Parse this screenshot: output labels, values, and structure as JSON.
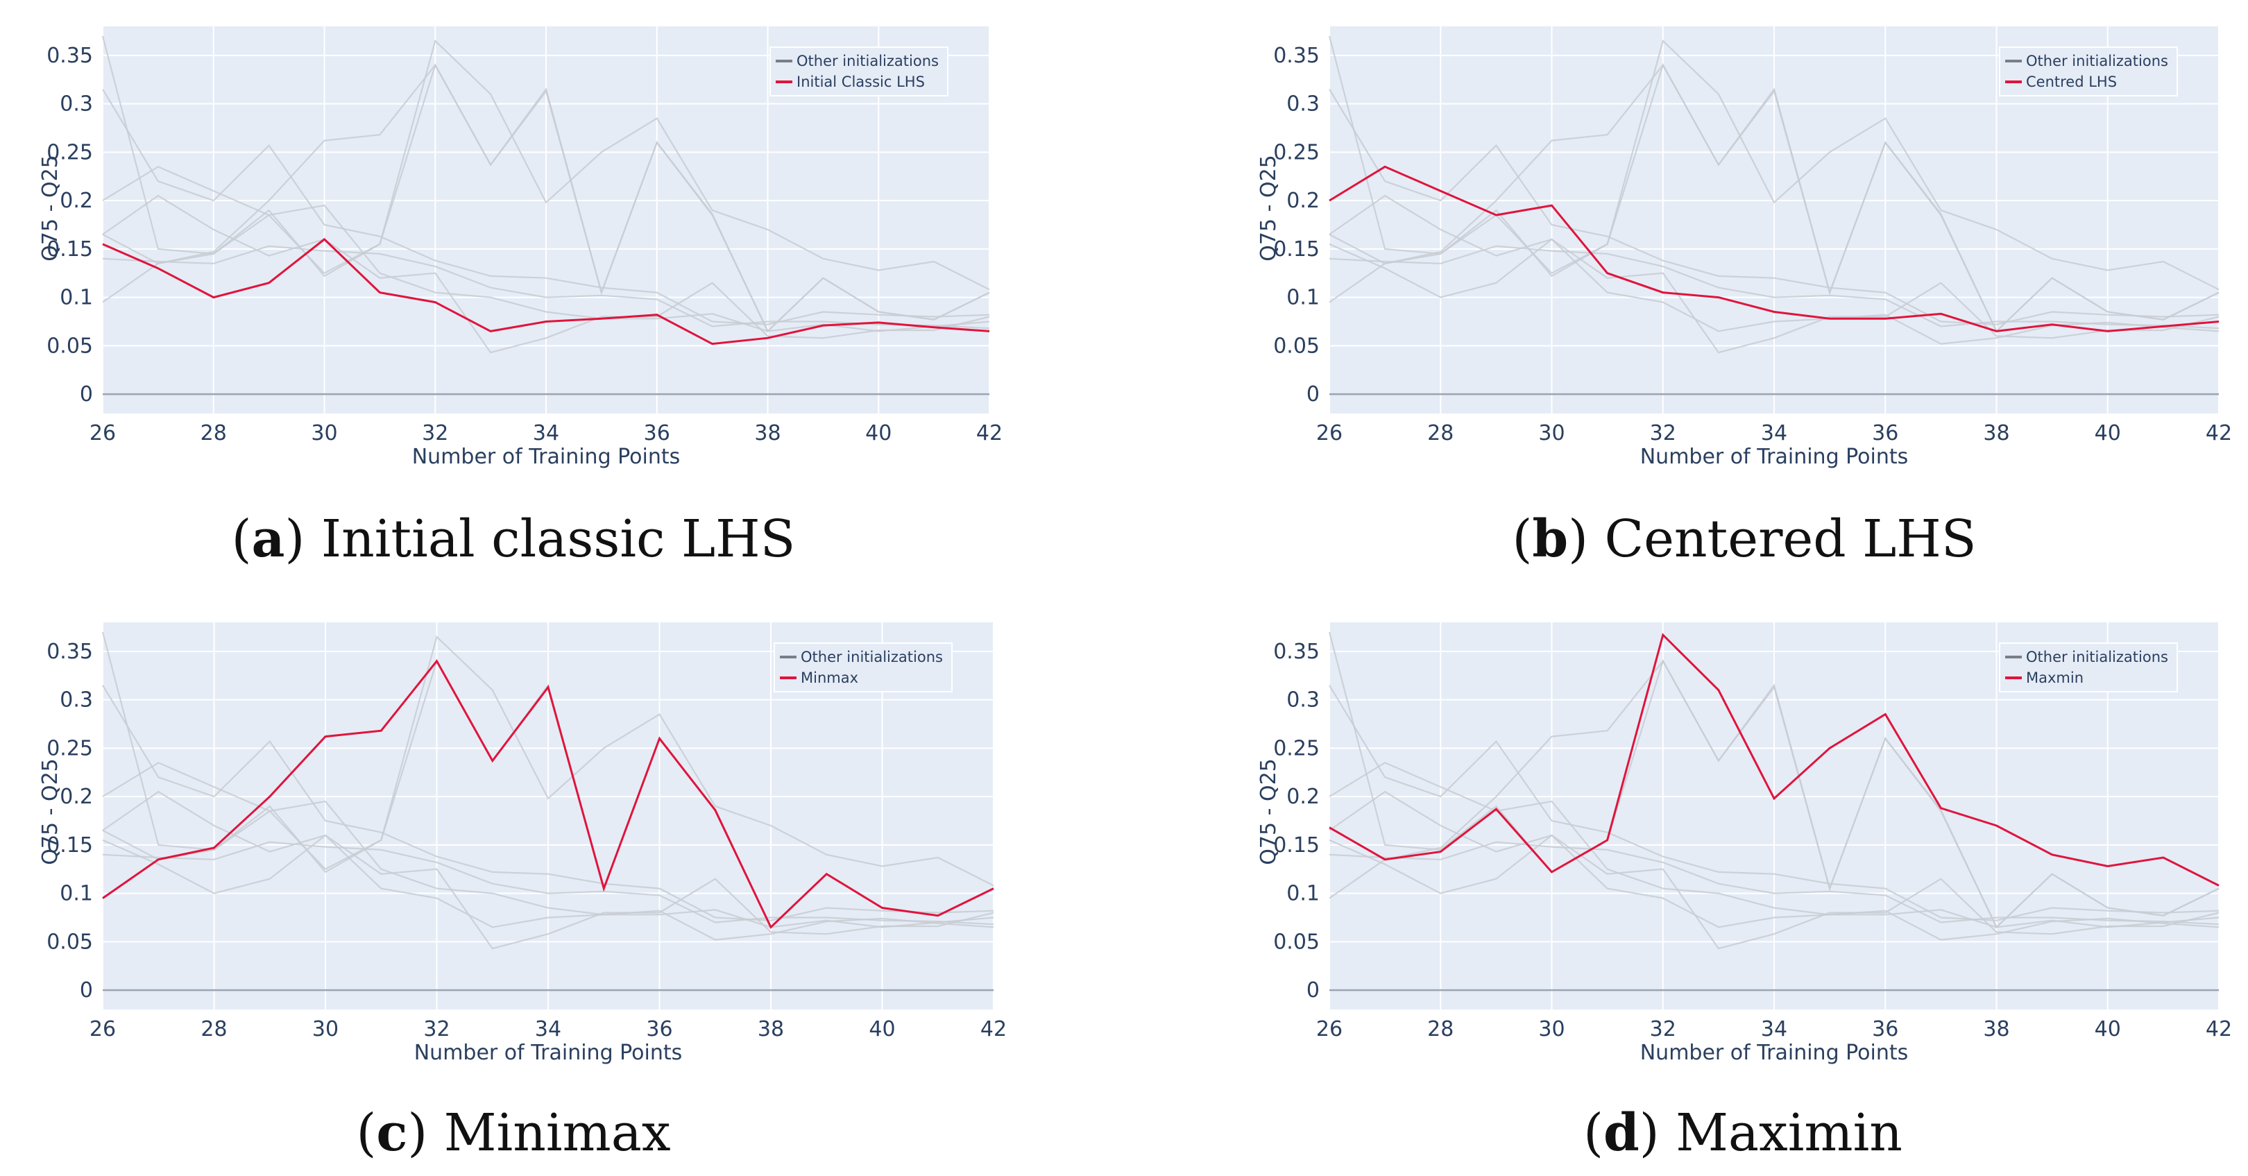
{
  "colors": {
    "highlight": "#e0143c",
    "other": "#c8ccd2",
    "plot_bg": "#e5ecf6",
    "text": "#2a3f5f"
  },
  "chart_data": [
    {
      "type": "line",
      "panel": "a",
      "caption": {
        "letter": "a",
        "text": "Initial classic LHS"
      },
      "xlabel": "Number of Training Points",
      "ylabel": "Q75 - Q25",
      "xlim": [
        26,
        42
      ],
      "ylim": [
        -0.02,
        0.38
      ],
      "x_ticks": [
        26,
        28,
        30,
        32,
        34,
        36,
        38,
        40,
        42
      ],
      "y_ticks": [
        0,
        0.05,
        0.1,
        0.15,
        0.2,
        0.25,
        0.3,
        0.35
      ],
      "y_tick_labels": [
        "0",
        "0.05",
        "0.1",
        "0.15",
        "0.2",
        "0.25",
        "0.3",
        "0.35"
      ],
      "grid": true,
      "legend": {
        "position": "top-right",
        "entries": [
          "Other initializations",
          "Initial Classic LHS"
        ]
      },
      "x": [
        26,
        27,
        28,
        29,
        30,
        31,
        32,
        33,
        34,
        35,
        36,
        37,
        38,
        39,
        40,
        41,
        42
      ],
      "highlight_index": 0,
      "series": [
        {
          "name": "Initial Classic LHS",
          "values": [
            0.155,
            0.13,
            0.1,
            0.115,
            0.16,
            0.105,
            0.095,
            0.065,
            0.075,
            0.078,
            0.082,
            0.052,
            0.058,
            0.071,
            0.074,
            0.069,
            0.065
          ]
        },
        {
          "values": [
            0.37,
            0.15,
            0.145,
            0.185,
            0.125,
            0.155,
            0.365,
            0.31,
            0.198,
            0.25,
            0.285,
            0.19,
            0.17,
            0.14,
            0.128,
            0.137,
            0.108
          ]
        },
        {
          "values": [
            0.2,
            0.235,
            0.21,
            0.185,
            0.195,
            0.125,
            0.105,
            0.1,
            0.085,
            0.078,
            0.078,
            0.083,
            0.065,
            0.072,
            0.065,
            0.07,
            0.075
          ]
        },
        {
          "values": [
            0.165,
            0.135,
            0.145,
            0.19,
            0.122,
            0.155,
            0.34,
            0.237,
            0.315,
            0.105,
            0.26,
            0.185,
            0.065,
            0.12,
            0.085,
            0.077,
            0.105
          ]
        },
        {
          "values": [
            0.095,
            0.135,
            0.147,
            0.2,
            0.262,
            0.268,
            0.34,
            0.237,
            0.313,
            0.105,
            0.26,
            0.186,
            0.065,
            0.12,
            0.085,
            0.077,
            0.105
          ]
        },
        {
          "values": [
            0.165,
            0.205,
            0.17,
            0.143,
            0.16,
            0.12,
            0.125,
            0.043,
            0.058,
            0.08,
            0.08,
            0.115,
            0.06,
            0.058,
            0.066,
            0.066,
            0.08
          ]
        },
        {
          "values": [
            0.315,
            0.22,
            0.2,
            0.257,
            0.175,
            0.163,
            0.138,
            0.122,
            0.12,
            0.11,
            0.105,
            0.075,
            0.072,
            0.085,
            0.082,
            0.08,
            0.082
          ]
        },
        {
          "values": [
            0.14,
            0.137,
            0.135,
            0.153,
            0.148,
            0.145,
            0.132,
            0.11,
            0.1,
            0.102,
            0.098,
            0.07,
            0.075,
            0.075,
            0.072,
            0.071,
            0.068
          ]
        }
      ]
    },
    {
      "type": "line",
      "panel": "b",
      "caption": {
        "letter": "b",
        "text": "Centered LHS"
      },
      "xlabel": "Number of Training Points",
      "ylabel": "Q75 - Q25",
      "xlim": [
        26,
        42
      ],
      "ylim": [
        -0.02,
        0.38
      ],
      "x_ticks": [
        26,
        28,
        30,
        32,
        34,
        36,
        38,
        40,
        42
      ],
      "y_ticks": [
        0,
        0.05,
        0.1,
        0.15,
        0.2,
        0.25,
        0.3,
        0.35
      ],
      "y_tick_labels": [
        "0",
        "0.05",
        "0.1",
        "0.15",
        "0.2",
        "0.25",
        "0.3",
        "0.35"
      ],
      "grid": true,
      "legend": {
        "position": "top-right",
        "entries": [
          "Other initializations",
          "Centred LHS"
        ]
      },
      "x": [
        26,
        27,
        28,
        29,
        30,
        31,
        32,
        33,
        34,
        35,
        36,
        37,
        38,
        39,
        40,
        41,
        42
      ],
      "highlight_index": 2,
      "series": [
        {
          "values": [
            0.155,
            0.13,
            0.1,
            0.115,
            0.16,
            0.105,
            0.095,
            0.065,
            0.075,
            0.078,
            0.082,
            0.052,
            0.058,
            0.071,
            0.074,
            0.069,
            0.065
          ]
        },
        {
          "values": [
            0.37,
            0.15,
            0.145,
            0.185,
            0.125,
            0.155,
            0.365,
            0.31,
            0.198,
            0.25,
            0.285,
            0.19,
            0.17,
            0.14,
            0.128,
            0.137,
            0.108
          ]
        },
        {
          "name": "Centred LHS",
          "values": [
            0.2,
            0.235,
            0.21,
            0.185,
            0.195,
            0.125,
            0.105,
            0.1,
            0.085,
            0.078,
            0.078,
            0.083,
            0.065,
            0.072,
            0.065,
            0.07,
            0.075
          ]
        },
        {
          "values": [
            0.165,
            0.135,
            0.145,
            0.19,
            0.122,
            0.155,
            0.34,
            0.237,
            0.315,
            0.105,
            0.26,
            0.185,
            0.065,
            0.12,
            0.085,
            0.077,
            0.105
          ]
        },
        {
          "values": [
            0.095,
            0.135,
            0.147,
            0.2,
            0.262,
            0.268,
            0.34,
            0.237,
            0.313,
            0.105,
            0.26,
            0.186,
            0.065,
            0.12,
            0.085,
            0.077,
            0.105
          ]
        },
        {
          "values": [
            0.165,
            0.205,
            0.17,
            0.143,
            0.16,
            0.12,
            0.125,
            0.043,
            0.058,
            0.08,
            0.08,
            0.115,
            0.06,
            0.058,
            0.066,
            0.066,
            0.08
          ]
        },
        {
          "values": [
            0.315,
            0.22,
            0.2,
            0.257,
            0.175,
            0.163,
            0.138,
            0.122,
            0.12,
            0.11,
            0.105,
            0.075,
            0.072,
            0.085,
            0.082,
            0.08,
            0.082
          ]
        },
        {
          "values": [
            0.14,
            0.137,
            0.135,
            0.153,
            0.148,
            0.145,
            0.132,
            0.11,
            0.1,
            0.102,
            0.098,
            0.07,
            0.075,
            0.075,
            0.072,
            0.071,
            0.068
          ]
        }
      ]
    },
    {
      "type": "line",
      "panel": "c",
      "caption": {
        "letter": "c",
        "text": "Minimax"
      },
      "xlabel": "Number of Training Points",
      "ylabel": "Q75 - Q25",
      "xlim": [
        26,
        42
      ],
      "ylim": [
        -0.02,
        0.38
      ],
      "x_ticks": [
        26,
        28,
        30,
        32,
        34,
        36,
        38,
        40,
        42
      ],
      "y_ticks": [
        0,
        0.05,
        0.1,
        0.15,
        0.2,
        0.25,
        0.3,
        0.35
      ],
      "y_tick_labels": [
        "0",
        "0.05",
        "0.1",
        "0.15",
        "0.2",
        "0.25",
        "0.3",
        "0.35"
      ],
      "grid": true,
      "legend": {
        "position": "top-right",
        "entries": [
          "Other initializations",
          "Minmax"
        ]
      },
      "x": [
        26,
        27,
        28,
        29,
        30,
        31,
        32,
        33,
        34,
        35,
        36,
        37,
        38,
        39,
        40,
        41,
        42
      ],
      "highlight_index": 4,
      "series": [
        {
          "values": [
            0.155,
            0.13,
            0.1,
            0.115,
            0.16,
            0.105,
            0.095,
            0.065,
            0.075,
            0.078,
            0.082,
            0.052,
            0.058,
            0.071,
            0.074,
            0.069,
            0.065
          ]
        },
        {
          "values": [
            0.37,
            0.15,
            0.145,
            0.185,
            0.125,
            0.155,
            0.365,
            0.31,
            0.198,
            0.25,
            0.285,
            0.19,
            0.17,
            0.14,
            0.128,
            0.137,
            0.108
          ]
        },
        {
          "values": [
            0.2,
            0.235,
            0.21,
            0.185,
            0.195,
            0.125,
            0.105,
            0.1,
            0.085,
            0.078,
            0.078,
            0.083,
            0.065,
            0.072,
            0.065,
            0.07,
            0.075
          ]
        },
        {
          "values": [
            0.165,
            0.135,
            0.145,
            0.19,
            0.122,
            0.155,
            0.34,
            0.237,
            0.315,
            0.105,
            0.26,
            0.185,
            0.065,
            0.12,
            0.085,
            0.077,
            0.105
          ]
        },
        {
          "name": "Minmax",
          "values": [
            0.095,
            0.135,
            0.147,
            0.2,
            0.262,
            0.268,
            0.34,
            0.237,
            0.313,
            0.105,
            0.26,
            0.186,
            0.065,
            0.12,
            0.085,
            0.077,
            0.105
          ]
        },
        {
          "values": [
            0.165,
            0.205,
            0.17,
            0.143,
            0.16,
            0.12,
            0.125,
            0.043,
            0.058,
            0.08,
            0.08,
            0.115,
            0.06,
            0.058,
            0.066,
            0.066,
            0.08
          ]
        },
        {
          "values": [
            0.315,
            0.22,
            0.2,
            0.257,
            0.175,
            0.163,
            0.138,
            0.122,
            0.12,
            0.11,
            0.105,
            0.075,
            0.072,
            0.085,
            0.082,
            0.08,
            0.082
          ]
        },
        {
          "values": [
            0.14,
            0.137,
            0.135,
            0.153,
            0.148,
            0.145,
            0.132,
            0.11,
            0.1,
            0.102,
            0.098,
            0.07,
            0.075,
            0.075,
            0.072,
            0.071,
            0.068
          ]
        }
      ]
    },
    {
      "type": "line",
      "panel": "d",
      "caption": {
        "letter": "d",
        "text": "Maximin"
      },
      "xlabel": "Number of Training Points",
      "ylabel": "Q75 - Q25",
      "xlim": [
        26,
        42
      ],
      "ylim": [
        -0.02,
        0.38
      ],
      "x_ticks": [
        26,
        28,
        30,
        32,
        34,
        36,
        38,
        40,
        42
      ],
      "y_ticks": [
        0,
        0.05,
        0.1,
        0.15,
        0.2,
        0.25,
        0.3,
        0.35
      ],
      "y_tick_labels": [
        "0",
        "0.05",
        "0.1",
        "0.15",
        "0.2",
        "0.25",
        "0.3",
        "0.35"
      ],
      "grid": true,
      "legend": {
        "position": "top-right",
        "entries": [
          "Other initializations",
          "Maxmin"
        ]
      },
      "x": [
        26,
        27,
        28,
        29,
        30,
        31,
        32,
        33,
        34,
        35,
        36,
        37,
        38,
        39,
        40,
        41,
        42
      ],
      "highlight_index": 1,
      "series": [
        {
          "values": [
            0.155,
            0.13,
            0.1,
            0.115,
            0.16,
            0.105,
            0.095,
            0.065,
            0.075,
            0.078,
            0.082,
            0.052,
            0.058,
            0.071,
            0.074,
            0.069,
            0.065
          ]
        },
        {
          "name": "Maxmin",
          "values": [
            0.168,
            0.135,
            0.143,
            0.187,
            0.122,
            0.155,
            0.367,
            0.31,
            0.198,
            0.25,
            0.285,
            0.188,
            0.17,
            0.14,
            0.128,
            0.137,
            0.108
          ]
        },
        {
          "values": [
            0.2,
            0.235,
            0.21,
            0.185,
            0.195,
            0.125,
            0.105,
            0.1,
            0.085,
            0.078,
            0.078,
            0.083,
            0.065,
            0.072,
            0.065,
            0.07,
            0.075
          ]
        },
        {
          "values": [
            0.37,
            0.15,
            0.145,
            0.19,
            0.122,
            0.155,
            0.34,
            0.237,
            0.315,
            0.105,
            0.26,
            0.185,
            0.065,
            0.12,
            0.085,
            0.077,
            0.105
          ]
        },
        {
          "values": [
            0.095,
            0.135,
            0.147,
            0.2,
            0.262,
            0.268,
            0.34,
            0.237,
            0.313,
            0.105,
            0.26,
            0.186,
            0.065,
            0.12,
            0.085,
            0.077,
            0.105
          ]
        },
        {
          "values": [
            0.165,
            0.205,
            0.17,
            0.143,
            0.16,
            0.12,
            0.125,
            0.043,
            0.058,
            0.08,
            0.08,
            0.115,
            0.06,
            0.058,
            0.066,
            0.066,
            0.08
          ]
        },
        {
          "values": [
            0.315,
            0.22,
            0.2,
            0.257,
            0.175,
            0.163,
            0.138,
            0.122,
            0.12,
            0.11,
            0.105,
            0.075,
            0.072,
            0.085,
            0.082,
            0.08,
            0.082
          ]
        },
        {
          "values": [
            0.14,
            0.137,
            0.135,
            0.153,
            0.148,
            0.145,
            0.132,
            0.11,
            0.1,
            0.102,
            0.098,
            0.07,
            0.075,
            0.075,
            0.072,
            0.071,
            0.068
          ]
        }
      ]
    }
  ]
}
